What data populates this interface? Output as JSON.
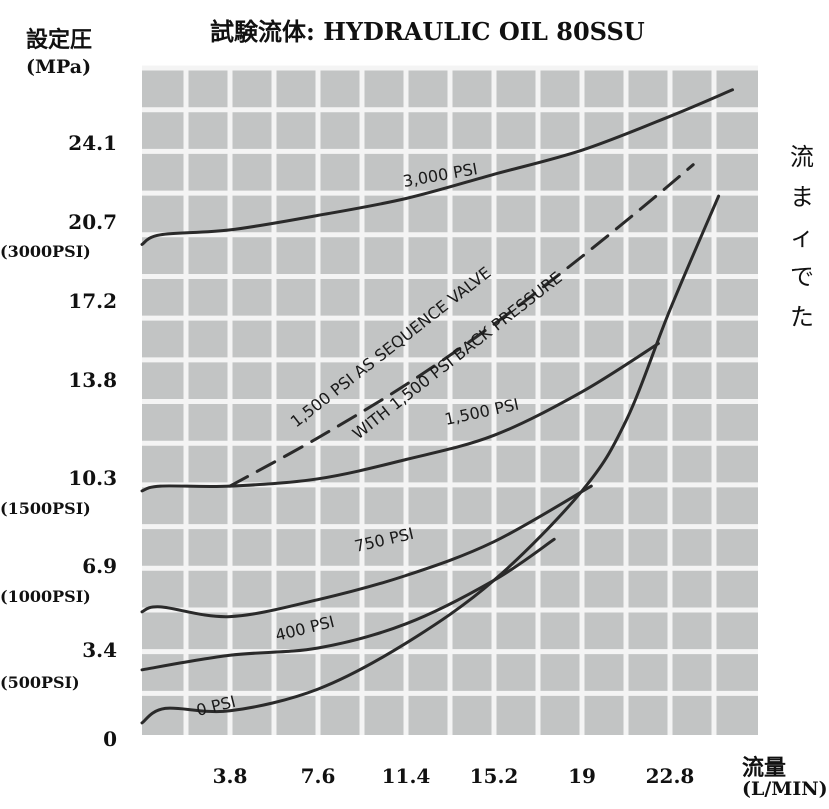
{
  "chart_data": {
    "type": "line",
    "title": "試験流体: HYDRAULIC OIL 80SSU",
    "ylabel": "設定圧",
    "yunit": "(MPa)",
    "xlabel": "流量",
    "xunit": "(L/MIN)",
    "xlim": [
      0,
      26.6
    ],
    "ylim": [
      0,
      27.6
    ],
    "x_ticks": [
      "3.8",
      "7.6",
      "11.4",
      "15.2",
      "19",
      "22.8"
    ],
    "y_ticks": [
      {
        "value": "24.1",
        "sub": ""
      },
      {
        "value": "20.7",
        "sub": "(3000PSI)"
      },
      {
        "value": "17.2",
        "sub": ""
      },
      {
        "value": "13.8",
        "sub": ""
      },
      {
        "value": "10.3",
        "sub": "(1500PSI)"
      },
      {
        "value": "6.9",
        "sub": "(1000PSI)"
      },
      {
        "value": "3.4",
        "sub": "(500PSI)"
      },
      {
        "value": "0",
        "sub": ""
      }
    ],
    "grid": true,
    "series": [
      {
        "name": "3,000 PSI",
        "style": "solid",
        "x": [
          0,
          0.8,
          3.8,
          7.6,
          11.4,
          15.2,
          19,
          22.8,
          25.5
        ],
        "y": [
          20.3,
          20.7,
          20.9,
          21.5,
          22.2,
          23.2,
          24.2,
          25.6,
          26.7
        ]
      },
      {
        "name": "1,500 PSI",
        "style": "solid",
        "x": [
          0,
          0.8,
          3.8,
          7.6,
          11.4,
          15.2,
          19,
          22.3
        ],
        "y": [
          10.1,
          10.3,
          10.3,
          10.6,
          11.4,
          12.4,
          14.2,
          16.2
        ]
      },
      {
        "name": "1,500 PSI AS SEQUENCE VALVE WITH 1,500 PSI BACK PRESSURE",
        "style": "dashed",
        "x": [
          3.8,
          7.6,
          11.4,
          15.2,
          19,
          22.2,
          23.8
        ],
        "y": [
          10.3,
          12.3,
          14.5,
          17.0,
          19.8,
          22.3,
          23.6
        ]
      },
      {
        "name": "750 PSI",
        "style": "solid",
        "x": [
          0,
          0.8,
          3.8,
          7.6,
          11.4,
          15.2,
          19.4
        ],
        "y": [
          5.1,
          5.3,
          4.9,
          5.6,
          6.6,
          8.0,
          10.3
        ]
      },
      {
        "name": "400 PSI",
        "style": "solid",
        "x": [
          0,
          3.8,
          7.6,
          11.4,
          15.2,
          17.8
        ],
        "y": [
          2.7,
          3.3,
          3.6,
          4.6,
          6.4,
          8.1
        ]
      },
      {
        "name": "0 PSI",
        "style": "solid",
        "x": [
          0,
          1.0,
          3.8,
          7.6,
          11.4,
          15.2,
          19,
          20.9,
          22.8,
          24.9
        ],
        "y": [
          0.5,
          1.1,
          1.0,
          1.9,
          3.8,
          6.4,
          10.1,
          13.0,
          17.6,
          22.3
        ]
      }
    ],
    "annotations": [
      {
        "text": "3,000 PSI"
      },
      {
        "text": "1,500 PSI AS SEQUENCE VALVE"
      },
      {
        "text": "WITH 1,500 PSI BACK PRESSURE"
      },
      {
        "text": "1,500 PSI"
      },
      {
        "text": "750 PSI"
      },
      {
        "text": "400 PSI"
      },
      {
        "text": "0 PSI"
      }
    ]
  },
  "side_text": [
    "流",
    "ま",
    "ィ",
    "で",
    "た"
  ]
}
